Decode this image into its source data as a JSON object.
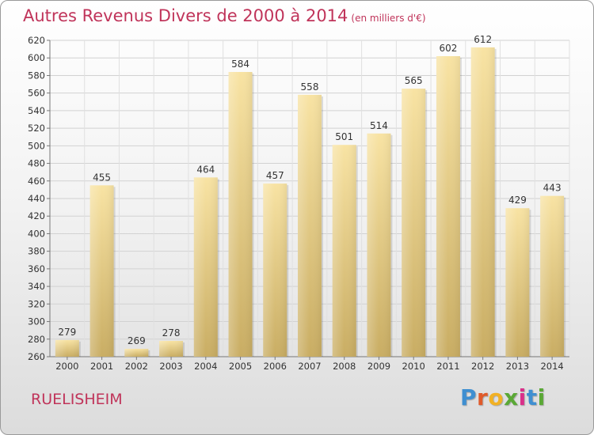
{
  "header": {
    "title": "Autres Revenus Divers de 2000 à 2014",
    "unit": "(en milliers d'€)"
  },
  "footer": {
    "place": "RUELISHEIM",
    "logo_letters": [
      "P",
      "r",
      "o",
      "x",
      "i",
      "t",
      "i"
    ],
    "logo_colors": [
      "#3f8fd1",
      "#e05a2a",
      "#f2b124",
      "#5aa835",
      "#d9308a",
      "#3f8fd1",
      "#5aa835"
    ]
  },
  "chart_data": {
    "type": "bar",
    "categories": [
      "2000",
      "2001",
      "2002",
      "2003",
      "2004",
      "2005",
      "2006",
      "2007",
      "2008",
      "2009",
      "2010",
      "2011",
      "2012",
      "2013",
      "2014"
    ],
    "values": [
      279,
      455,
      269,
      278,
      464,
      584,
      457,
      558,
      501,
      514,
      565,
      602,
      612,
      429,
      443
    ],
    "ylim": [
      260,
      620
    ],
    "yticks": [
      260,
      280,
      300,
      320,
      340,
      360,
      380,
      400,
      420,
      440,
      460,
      480,
      500,
      520,
      540,
      560,
      580,
      600,
      620
    ],
    "grid": true,
    "bar_color_top": "#f8e3a3",
    "bar_color_bottom": "#c9ad63"
  }
}
